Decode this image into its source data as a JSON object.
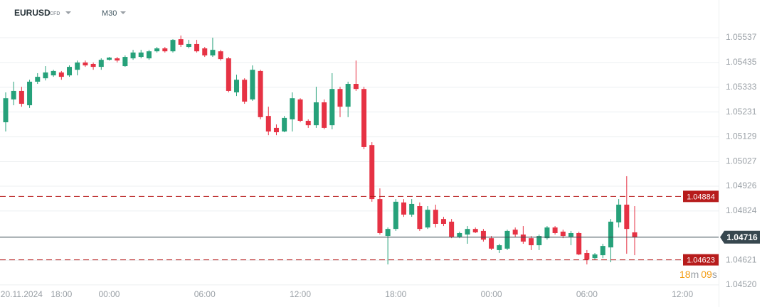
{
  "chart_data": {
    "type": "candlestick",
    "symbol": "EURUSD",
    "instrument_type": "CFD",
    "timeframe": "M30",
    "up_color": "#26a17a",
    "down_color": "#e63244",
    "grid": true,
    "categories": [
      null,
      null,
      "20.11.2024",
      null,
      null,
      null,
      null,
      "18:00",
      null,
      null,
      null,
      null,
      null,
      "00:00",
      null,
      null,
      null,
      null,
      null,
      null,
      null,
      null,
      null,
      null,
      null,
      "06:00",
      null,
      null,
      null,
      null,
      null,
      null,
      null,
      null,
      null,
      null,
      null,
      "12:00",
      null,
      null,
      null,
      null,
      null,
      null,
      null,
      null,
      null,
      null,
      null,
      "18:00",
      null,
      null,
      null,
      null,
      null,
      null,
      null,
      null,
      null,
      null,
      null,
      "00:00",
      null,
      null,
      null,
      null,
      null,
      null,
      null,
      null,
      null,
      null,
      null,
      "06:00",
      null,
      null,
      null,
      null,
      null,
      null,
      null,
      null,
      null,
      null,
      null,
      "12:00"
    ],
    "open": [
      1.05189,
      1.05283,
      1.05318,
      1.05259,
      1.05356,
      1.0537,
      1.05382,
      1.05394,
      1.05382,
      1.05405,
      1.05435,
      1.05429,
      1.05417,
      1.05446,
      1.05452,
      1.0542,
      1.05452,
      1.05458,
      1.05452,
      1.05481,
      1.05493,
      1.05481,
      1.05531,
      1.05499,
      1.05511,
      1.05493,
      1.05464,
      1.05481,
      1.05452,
      1.05312,
      1.05364,
      1.05283,
      1.054,
      1.05215,
      1.05166,
      1.05151,
      1.05201,
      1.05283,
      1.05195,
      1.05177,
      1.05271,
      1.05177,
      1.05326,
      1.05253,
      1.05347,
      1.05326,
      1.05095,
      1.04873,
      1.04721,
      1.0475,
      1.04859,
      1.04809,
      1.04844,
      1.04756,
      1.04829,
      1.04791,
      1.0478,
      1.04718,
      1.04727,
      1.0475,
      1.04742,
      1.04712,
      1.04663,
      1.04669,
      1.04747,
      1.04727,
      1.04712,
      1.04683,
      1.04712,
      1.04756,
      1.04739,
      1.04718,
      1.04733,
      1.04651,
      1.0463,
      1.04642,
      1.04674,
      1.04777,
      1.0485,
      1.04736,
      null,
      null,
      null,
      null,
      null,
      null
    ],
    "high": [
      1.05312,
      1.05356,
      1.05335,
      1.05364,
      1.05391,
      1.0542,
      1.05405,
      1.054,
      1.05423,
      1.05443,
      1.05443,
      1.05435,
      1.05452,
      1.05458,
      1.05458,
      1.05464,
      1.05487,
      1.05487,
      1.05487,
      1.05499,
      1.05499,
      1.05531,
      1.05546,
      1.05528,
      1.05528,
      1.05499,
      1.05537,
      1.05487,
      1.05458,
      1.05385,
      1.0537,
      1.05423,
      1.05405,
      1.05253,
      1.0518,
      1.05215,
      1.05312,
      1.05288,
      1.05201,
      1.05335,
      1.05283,
      1.05391,
      1.05335,
      1.05356,
      1.05443,
      1.05335,
      1.05107,
      1.04917,
      1.04756,
      1.04873,
      1.04873,
      1.04873,
      1.04859,
      1.04844,
      1.0485,
      1.048,
      1.04791,
      1.04739,
      1.04762,
      1.04756,
      1.0475,
      1.04721,
      1.04689,
      1.04747,
      1.04756,
      1.04762,
      1.04721,
      1.04727,
      1.04762,
      1.04762,
      1.04747,
      1.04742,
      1.04739,
      1.04663,
      1.04651,
      1.04689,
      1.04791,
      1.04873,
      1.04967,
      1.04844,
      null,
      null,
      null,
      null,
      null,
      null
    ],
    "low": [
      1.05151,
      1.05259,
      1.05253,
      1.05248,
      1.05347,
      1.05361,
      1.05376,
      1.05364,
      1.05376,
      1.05382,
      1.05417,
      1.05405,
      1.05405,
      1.05443,
      1.05435,
      1.05417,
      1.05446,
      1.05452,
      1.05446,
      1.05476,
      1.05476,
      1.05476,
      1.05499,
      1.05493,
      1.05476,
      1.05458,
      1.05458,
      1.05443,
      1.05312,
      1.05297,
      1.05265,
      1.05277,
      1.05201,
      1.05136,
      1.05136,
      1.05148,
      1.05151,
      1.05189,
      1.05166,
      1.05166,
      1.0516,
      1.0516,
      1.0521,
      1.0521,
      1.05318,
      1.05078,
      1.04862,
      1.04727,
      1.04604,
      1.04742,
      1.048,
      1.048,
      1.04742,
      1.0475,
      1.04756,
      1.04762,
      1.04712,
      1.04712,
      1.04689,
      1.04733,
      1.04698,
      1.04663,
      1.04651,
      1.04663,
      1.04718,
      1.04689,
      1.04663,
      1.04663,
      1.04706,
      1.04727,
      1.04712,
      1.04683,
      1.04642,
      1.04604,
      1.04624,
      1.0463,
      1.04613,
      1.04756,
      1.04648,
      1.04642,
      null,
      null,
      null,
      null,
      null,
      null
    ],
    "close": [
      1.05288,
      1.05318,
      1.05265,
      1.05356,
      1.05376,
      1.05394,
      1.054,
      1.05376,
      1.05417,
      1.05435,
      1.05423,
      1.05417,
      1.05446,
      1.05455,
      1.05443,
      1.05458,
      1.05476,
      1.05476,
      1.05481,
      1.05493,
      1.05481,
      1.05528,
      1.05508,
      1.05511,
      1.05481,
      1.05464,
      1.05487,
      1.05449,
      1.05318,
      1.05364,
      1.05274,
      1.05405,
      1.0521,
      1.05151,
      1.05148,
      1.05207,
      1.05288,
      1.05195,
      1.05177,
      1.05271,
      1.05166,
      1.05326,
      1.05253,
      1.05347,
      1.05326,
      1.05087,
      1.04873,
      1.04733,
      1.0475,
      1.04862,
      1.04809,
      1.04853,
      1.0475,
      1.04829,
      1.04771,
      1.04771,
      1.04718,
      1.04733,
      1.0475,
      1.04736,
      1.04706,
      1.04669,
      1.04683,
      1.04742,
      1.04727,
      1.04698,
      1.04683,
      1.04721,
      1.04756,
      1.04733,
      1.04721,
      1.04733,
      1.04645,
      1.04624,
      1.04645,
      1.0468,
      1.0478,
      1.0485,
      1.0475,
      1.04716,
      null,
      null,
      null,
      null,
      null,
      null
    ],
    "ylim": [
      1.04499,
      1.05581
    ],
    "yticks": [
      1.05537,
      1.05435,
      1.05333,
      1.05231,
      1.05129,
      1.05027,
      1.04926,
      1.04824,
      1.04621,
      {
        "value": 1.0452,
        "label": "1.04520"
      }
    ],
    "price_lines": [
      {
        "value": 1.04884,
        "color": "#b71c1c",
        "style": "dashed"
      },
      {
        "value": 1.04623,
        "color": "#b71c1c",
        "style": "dashed"
      }
    ],
    "current_price": {
      "value": 1.04716,
      "color": "#37474f"
    },
    "countdown": {
      "minutes": "18",
      "minutes_unit": "m",
      "seconds": "09",
      "seconds_unit": "s",
      "color": "#f39c12",
      "unit_color": "#9aa0a6"
    }
  }
}
